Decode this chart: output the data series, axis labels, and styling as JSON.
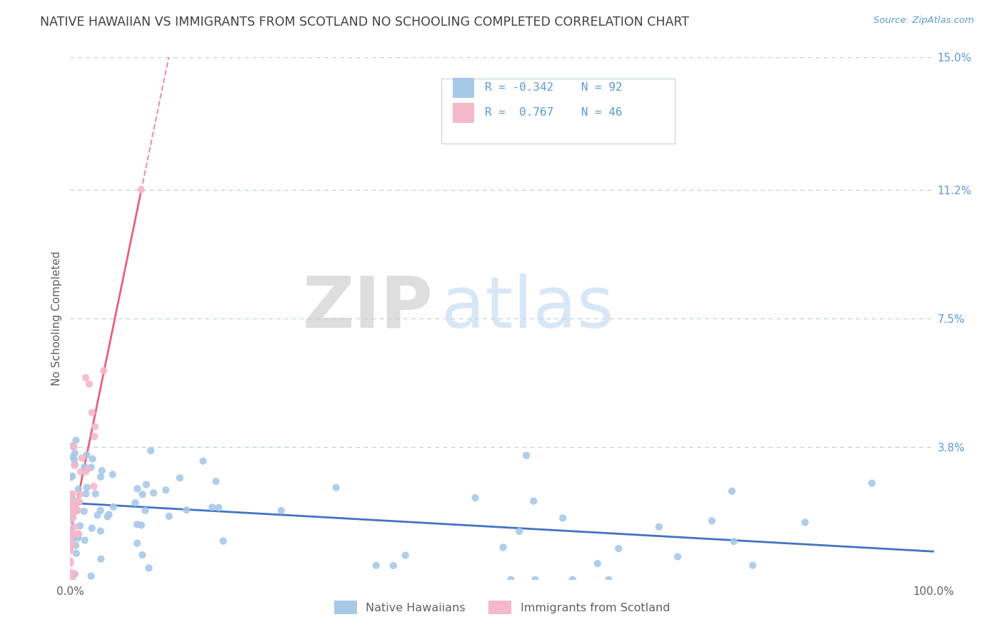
{
  "title": "NATIVE HAWAIIAN VS IMMIGRANTS FROM SCOTLAND NO SCHOOLING COMPLETED CORRELATION CHART",
  "source": "Source: ZipAtlas.com",
  "ylabel": "No Schooling Completed",
  "watermark_zip": "ZIP",
  "watermark_atlas": "atlas",
  "legend1_label": "Native Hawaiians",
  "legend2_label": "Immigrants from Scotland",
  "r1": -0.342,
  "n1": 92,
  "r2": 0.767,
  "n2": 46,
  "color1": "#a8c8e8",
  "color2": "#f5b8c8",
  "line1_color": "#4472c4",
  "line2_color": "#e8607a",
  "background_color": "#ffffff",
  "grid_color": "#b8ccd8",
  "title_color": "#404040",
  "source_color": "#5b9bd5",
  "tick_color": "#5b9bd5",
  "label_color": "#606060",
  "xlim": [
    0.0,
    1.0
  ],
  "ylim": [
    0.0,
    0.15
  ],
  "ytick_vals": [
    0.0,
    0.038,
    0.075,
    0.112,
    0.15
  ],
  "ytick_labels": [
    "",
    "3.8%",
    "7.5%",
    "11.2%",
    "15.0%"
  ],
  "xtick_vals": [
    0.0,
    1.0
  ],
  "xtick_labels": [
    "0.0%",
    "100.0%"
  ]
}
